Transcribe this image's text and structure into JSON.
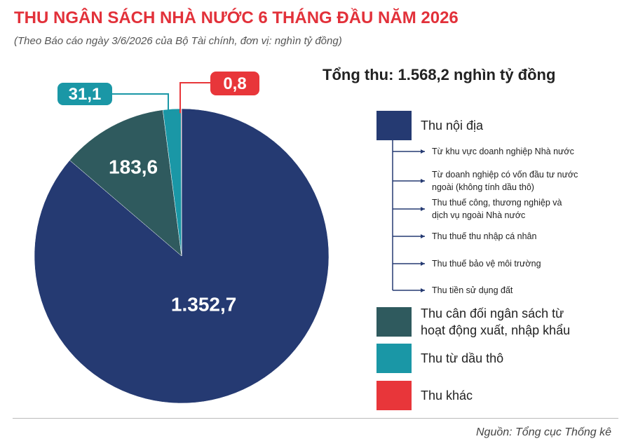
{
  "chart_data": {
    "type": "pie",
    "title": "THU NGÂN SÁCH NHÀ NƯỚC 6 THÁNG ĐẦU NĂM 2026",
    "subtitle": "(Theo Báo cáo ngày 3/6/2026 của Bộ Tài chính, đơn vị: nghìn tỷ đồng)",
    "total_label": "Tổng thu: 1.568,2 nghìn tỷ đồng",
    "categories": [
      "Thu nội địa",
      "Thu cân đối ngân sách từ hoạt động xuất, nhập khẩu",
      "Thu từ dầu thô",
      "Thu khác"
    ],
    "values": [
      1352.7,
      183.6,
      31.1,
      0.8
    ],
    "value_labels": [
      "1.352,7",
      "183,6",
      "31,1",
      "0,8"
    ],
    "colors": [
      "#253a72",
      "#2f5a5e",
      "#1a97a6",
      "#e8363a"
    ],
    "sub_items": [
      "Từ khu vực doanh nghiệp Nhà nước",
      "Từ doanh nghiệp có vốn đầu tư nước ngoài (không tính dầu thô)",
      "Thu thuế công, thương nghiệp và dịch vụ ngoài Nhà nước",
      "Thu thuế thu nhập cá nhân",
      "Thu thuế bảo vệ môi trường",
      "Thu tiền sử dụng đất"
    ],
    "source": "Nguồn: Tổng cục Thống kê"
  }
}
